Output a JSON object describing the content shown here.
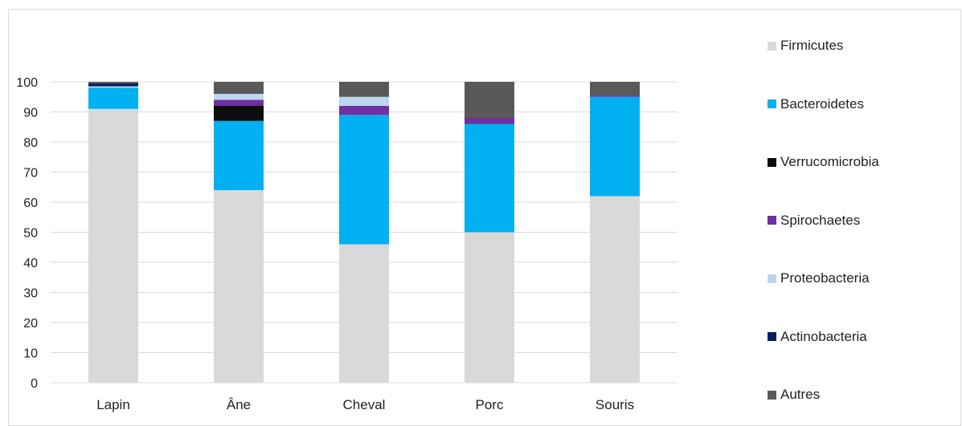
{
  "chart_data": {
    "type": "bar",
    "stacked": true,
    "categories": [
      "Lapin",
      "Âne",
      "Cheval",
      "Porc",
      "Souris"
    ],
    "ylim": [
      0,
      100
    ],
    "yticks": [
      0,
      10,
      20,
      30,
      40,
      50,
      60,
      70,
      80,
      90,
      100
    ],
    "grid": true,
    "legend_position": "right",
    "series": [
      {
        "name": "Firmicutes",
        "color": "#d9d9d9",
        "values": [
          91,
          64,
          46,
          50,
          62
        ]
      },
      {
        "name": "Bacteroidetes",
        "color": "#00b0f0",
        "values": [
          7,
          23,
          43,
          36,
          33
        ]
      },
      {
        "name": "Verrucomicrobia",
        "color": "#0d0d0d",
        "values": [
          0,
          5,
          0,
          0,
          0
        ]
      },
      {
        "name": "Spirochaetes",
        "color": "#7030a0",
        "values": [
          0,
          2,
          3,
          2,
          0.5
        ]
      },
      {
        "name": "Proteobacteria",
        "color": "#bdd7ee",
        "values": [
          0.5,
          2,
          3,
          0,
          0
        ]
      },
      {
        "name": "Actinobacteria",
        "color": "#002060",
        "values": [
          1,
          0,
          0,
          0,
          0
        ]
      },
      {
        "name": "Autres",
        "color": "#595959",
        "values": [
          0.5,
          4,
          5,
          12,
          4.5
        ]
      }
    ]
  }
}
